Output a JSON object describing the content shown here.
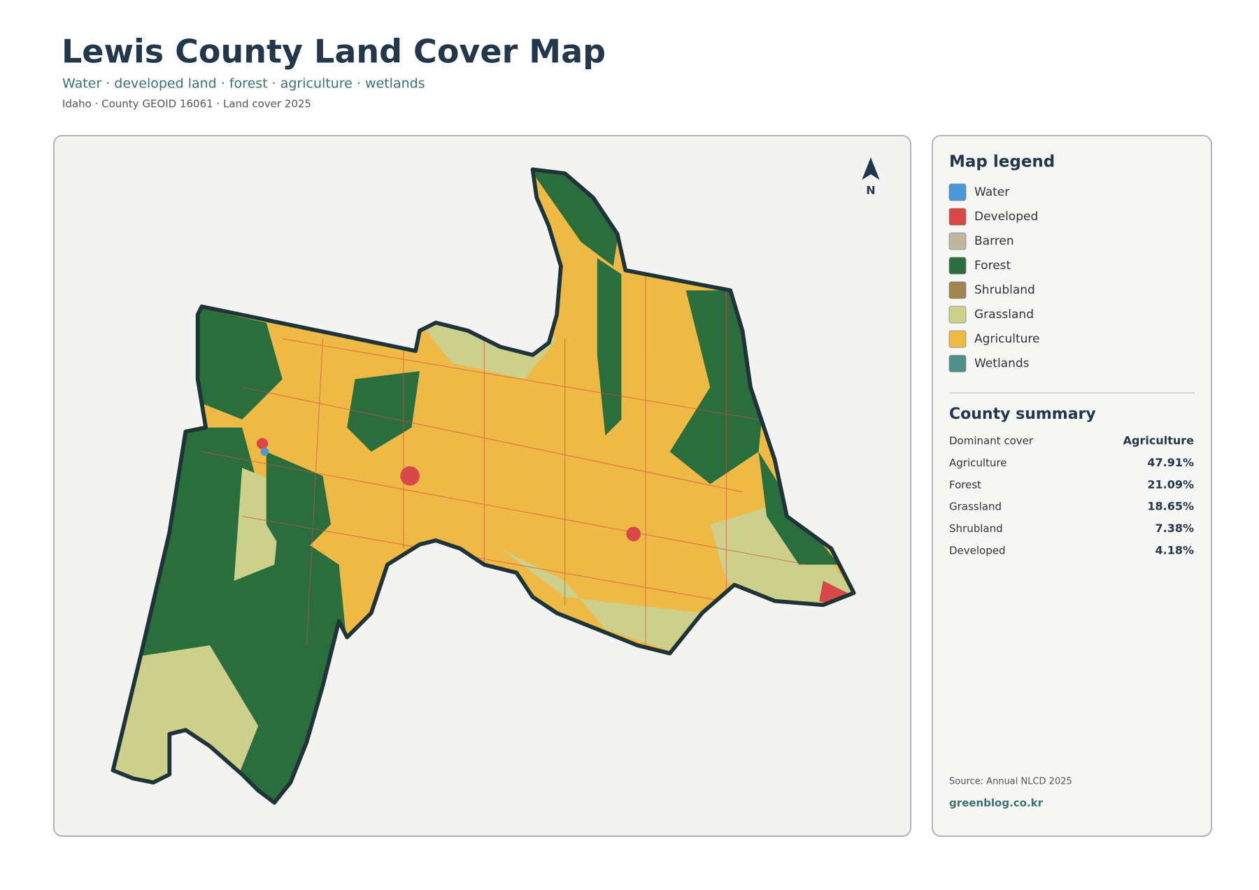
{
  "header": {
    "title": "Lewis County Land Cover Map",
    "subtitle": "Water · developed land · forest · agriculture · wetlands",
    "meta": "Idaho · County GEOID 16061 · Land cover 2025"
  },
  "map": {
    "north_label": "N"
  },
  "legend": {
    "title": "Map legend",
    "items": [
      {
        "label": "Water",
        "color": "#4a98d8"
      },
      {
        "label": "Developed",
        "color": "#d94848"
      },
      {
        "label": "Barren",
        "color": "#bfb6a0"
      },
      {
        "label": "Forest",
        "color": "#2a6e3e"
      },
      {
        "label": "Shrubland",
        "color": "#a08550"
      },
      {
        "label": "Grassland",
        "color": "#cdd08a"
      },
      {
        "label": "Agriculture",
        "color": "#eeb944"
      },
      {
        "label": "Wetlands",
        "color": "#4f9189"
      }
    ]
  },
  "summary": {
    "title": "County summary",
    "rows": [
      {
        "label": "Dominant cover",
        "value": "Agriculture"
      },
      {
        "label": "Agriculture",
        "value": "47.91%"
      },
      {
        "label": "Forest",
        "value": "21.09%"
      },
      {
        "label": "Grassland",
        "value": "18.65%"
      },
      {
        "label": "Shrubland",
        "value": "7.38%"
      },
      {
        "label": "Developed",
        "value": "4.18%"
      }
    ]
  },
  "footer": {
    "source": "Source: Annual NLCD 2025",
    "site": "greenblog.co.kr"
  }
}
